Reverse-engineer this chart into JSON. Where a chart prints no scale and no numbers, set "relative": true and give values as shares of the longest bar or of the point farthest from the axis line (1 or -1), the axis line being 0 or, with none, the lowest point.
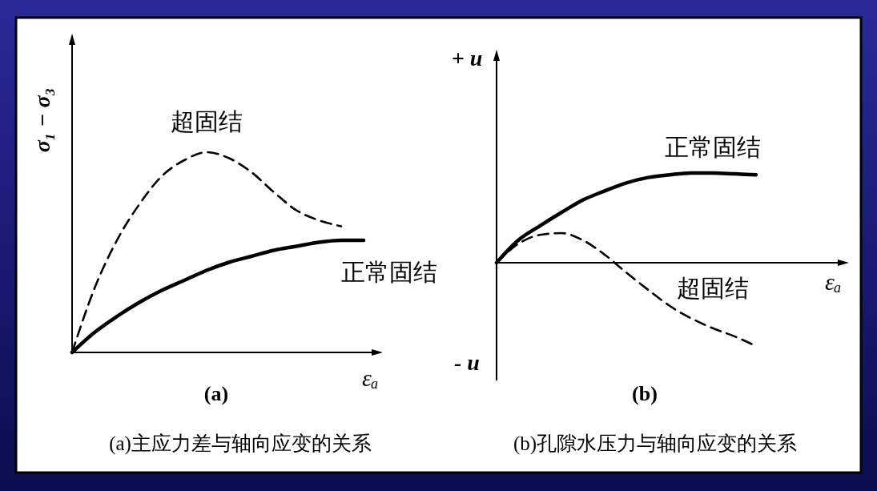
{
  "chart_data": [
    {
      "type": "line",
      "title": "(a)",
      "xlabel": "εₐ",
      "ylabel": "σ₁ − σ₃",
      "relative": true,
      "categories": [
        null,
        null,
        null,
        null,
        null,
        null,
        null,
        null,
        null,
        null,
        null,
        null,
        null,
        null
      ],
      "series": [
        {
          "name": "超固结",
          "color": "#000000",
          "line_style": "dashed",
          "values": [
            0,
            0.32,
            0.56,
            0.74,
            0.88,
            0.96,
            1.0,
            0.97,
            0.9,
            0.8,
            0.71,
            0.66,
            0.63,
            null
          ]
        },
        {
          "name": "正常固结",
          "color": "#000000",
          "line_style": "solid",
          "values": [
            0,
            0.1,
            0.18,
            0.25,
            0.31,
            0.36,
            0.41,
            0.45,
            0.48,
            0.51,
            0.53,
            0.55,
            0.56,
            0.56
          ]
        }
      ],
      "annotations": [
        "(a)主应力差与轴向应变的关系"
      ]
    },
    {
      "type": "line",
      "title": "(b)",
      "xlabel": "εₐ",
      "ylabel": "+ u",
      "relative": true,
      "categories": [
        null,
        null,
        null,
        null,
        null,
        null,
        null,
        null,
        null,
        null,
        null,
        null,
        null
      ],
      "series": [
        {
          "name": "正常固结",
          "color": "#000000",
          "line_style": "solid",
          "values": [
            0,
            0.25,
            0.41,
            0.56,
            0.7,
            0.8,
            0.89,
            0.95,
            0.98,
            1.0,
            1.0,
            0.99,
            0.98
          ]
        },
        {
          "name": "超固结",
          "color": "#000000",
          "line_style": "dashed",
          "values": [
            0,
            0.21,
            0.31,
            0.33,
            0.25,
            0.09,
            -0.11,
            -0.3,
            -0.48,
            -0.62,
            -0.73,
            -0.82,
            -0.93
          ]
        }
      ],
      "annotations": [
        "- u",
        "(b)孔隙水压力与轴向应变的关系"
      ]
    }
  ]
}
